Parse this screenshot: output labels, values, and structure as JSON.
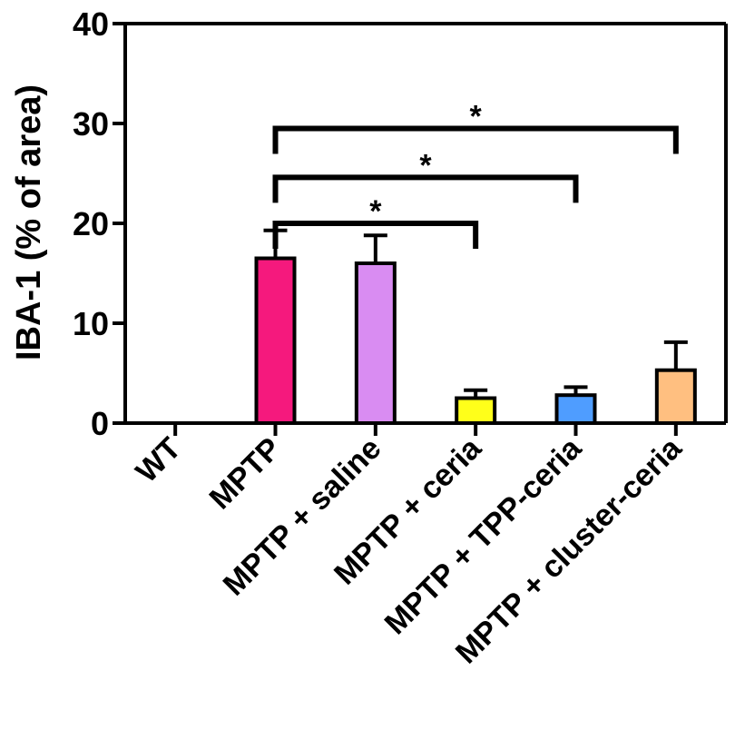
{
  "chart_data": {
    "type": "bar",
    "title": "",
    "xlabel": "",
    "ylabel": "IBA-1 (% of area)",
    "ylim": [
      0,
      40
    ],
    "yticks": [
      0,
      10,
      20,
      30,
      40
    ],
    "grid": false,
    "categories": [
      "WT",
      "MPTP",
      "MPTP + saline",
      "MPTP + ceria",
      "MPTP + TPP-ceria",
      "MPTP + cluster-ceria"
    ],
    "values": [
      0,
      16.5,
      16.0,
      2.5,
      2.8,
      5.3
    ],
    "errors": [
      0,
      2.8,
      2.8,
      0.8,
      0.8,
      2.8
    ],
    "colors": [
      "#ffffff",
      "#f5197d",
      "#d98cf2",
      "#ffff1a",
      "#4f9dff",
      "#ffbf80"
    ],
    "significance": [
      {
        "from": "MPTP",
        "to": "MPTP + ceria",
        "label": "*"
      },
      {
        "from": "MPTP",
        "to": "MPTP + TPP-ceria",
        "label": "*"
      },
      {
        "from": "MPTP",
        "to": "MPTP + cluster-ceria",
        "label": "*"
      }
    ]
  }
}
